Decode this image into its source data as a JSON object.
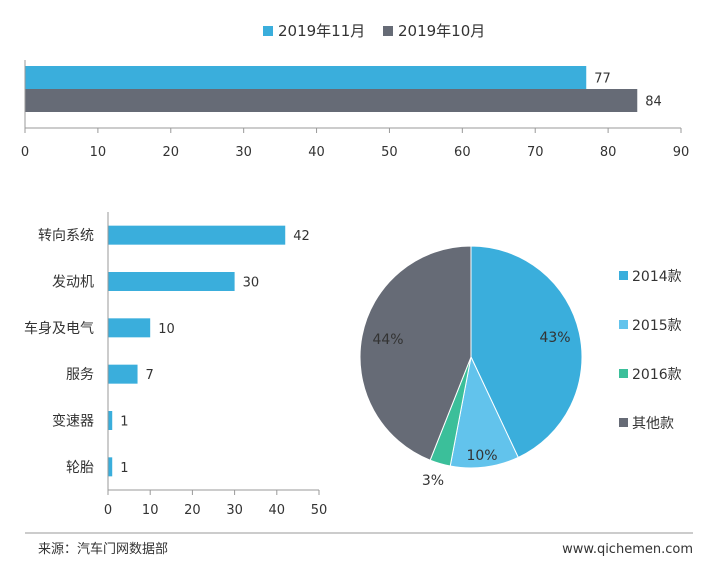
{
  "colors": {
    "blue": "#3aaedc",
    "gray": "#666b76",
    "light_blue": "#62c3ec",
    "green": "#3bbf9a",
    "axis": "#999999",
    "text": "#333333"
  },
  "chart_data": [
    {
      "type": "bar",
      "orientation": "horizontal",
      "legend_position": "top",
      "series": [
        {
          "name": "2019年11月",
          "values": [
            77
          ],
          "color": "#3aaedc"
        },
        {
          "name": "2019年10月",
          "values": [
            84
          ],
          "color": "#666b76"
        }
      ],
      "xlim": [
        0,
        90
      ],
      "xticks": [
        "0",
        "10",
        "20",
        "30",
        "40",
        "50",
        "60",
        "70",
        "80",
        "90"
      ],
      "grid": false
    },
    {
      "type": "bar",
      "orientation": "horizontal",
      "categories": [
        "转向系统",
        "发动机",
        "车身及电气",
        "服务",
        "变速器",
        "轮胎"
      ],
      "values": [
        42,
        30,
        10,
        7,
        1,
        1
      ],
      "xlim": [
        0,
        50
      ],
      "xticks": [
        "0",
        "10",
        "20",
        "30",
        "40",
        "50"
      ],
      "color": "#3aaedc",
      "grid": false
    },
    {
      "type": "pie",
      "legend_position": "right",
      "slices": [
        {
          "label": "2014款",
          "value": 43,
          "display": "43%",
          "color": "#3aaedc"
        },
        {
          "label": "2015款",
          "value": 10,
          "display": "10%",
          "color": "#62c3ec"
        },
        {
          "label": "2016款",
          "value": 3,
          "display": "3%",
          "color": "#3bbf9a"
        },
        {
          "label": "其他款",
          "value": 44,
          "display": "44%",
          "color": "#666b76"
        }
      ]
    }
  ],
  "footer": {
    "source": "来源：汽车门网数据部",
    "website": "www.qichemen.com"
  }
}
